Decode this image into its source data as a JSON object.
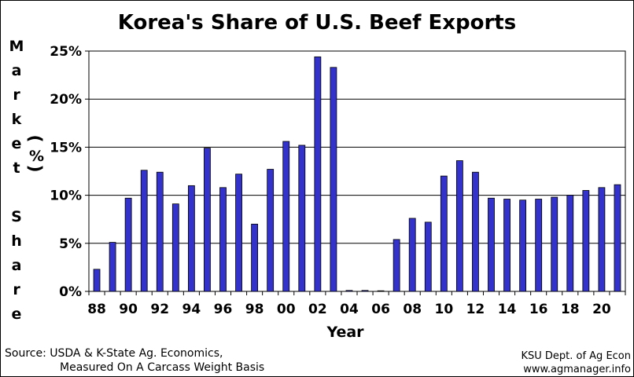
{
  "chart_data": {
    "type": "bar",
    "title": "Korea's Share of U.S. Beef Exports",
    "xlabel": "Year",
    "ylabel": "Market Share (%)",
    "ylim": [
      0,
      25
    ],
    "yticks": [
      "0%",
      "5%",
      "10%",
      "15%",
      "20%",
      "25%"
    ],
    "grid": true,
    "bar_color": "#3333cc",
    "categories": [
      "1988",
      "1989",
      "1990",
      "1991",
      "1992",
      "1993",
      "1994",
      "1995",
      "1996",
      "1997",
      "1998",
      "1999",
      "2000",
      "2001",
      "2002",
      "2003",
      "2004",
      "2005",
      "2006",
      "2007",
      "2008",
      "2009",
      "2010",
      "2011",
      "2012",
      "2013",
      "2014",
      "2015",
      "2016",
      "2017",
      "2018",
      "2019",
      "2020",
      "2021"
    ],
    "tick_labels": [
      "88",
      "90",
      "92",
      "94",
      "96",
      "98",
      "00",
      "02",
      "04",
      "06",
      "08",
      "10",
      "12",
      "14",
      "16",
      "18",
      "20"
    ],
    "values": [
      2.3,
      5.1,
      9.7,
      12.6,
      12.4,
      9.1,
      11.0,
      14.9,
      10.8,
      12.2,
      7.0,
      12.7,
      15.6,
      15.2,
      24.4,
      23.3,
      0.1,
      0.1,
      0.05,
      5.4,
      7.6,
      7.2,
      12.0,
      13.6,
      12.4,
      9.7,
      9.6,
      9.5,
      9.6,
      9.8,
      10.0,
      10.5,
      10.8,
      11.1
    ]
  },
  "ylabel_letters": [
    "M",
    "a",
    "r",
    "k",
    "e",
    "t",
    "",
    "S",
    "h",
    "a",
    "r",
    "e"
  ],
  "ylabel_pct": "(%)",
  "ylabel_paren_open": "(",
  "ylabel_percent": "%",
  "ylabel_paren_close": ")",
  "source": {
    "line1": "Source:  USDA & K-State Ag. Economics,",
    "line2": "Measured On A Carcass Weight Basis"
  },
  "credit": {
    "line1": "KSU Dept. of Ag Econ",
    "line2": "www.agmanager.info"
  }
}
